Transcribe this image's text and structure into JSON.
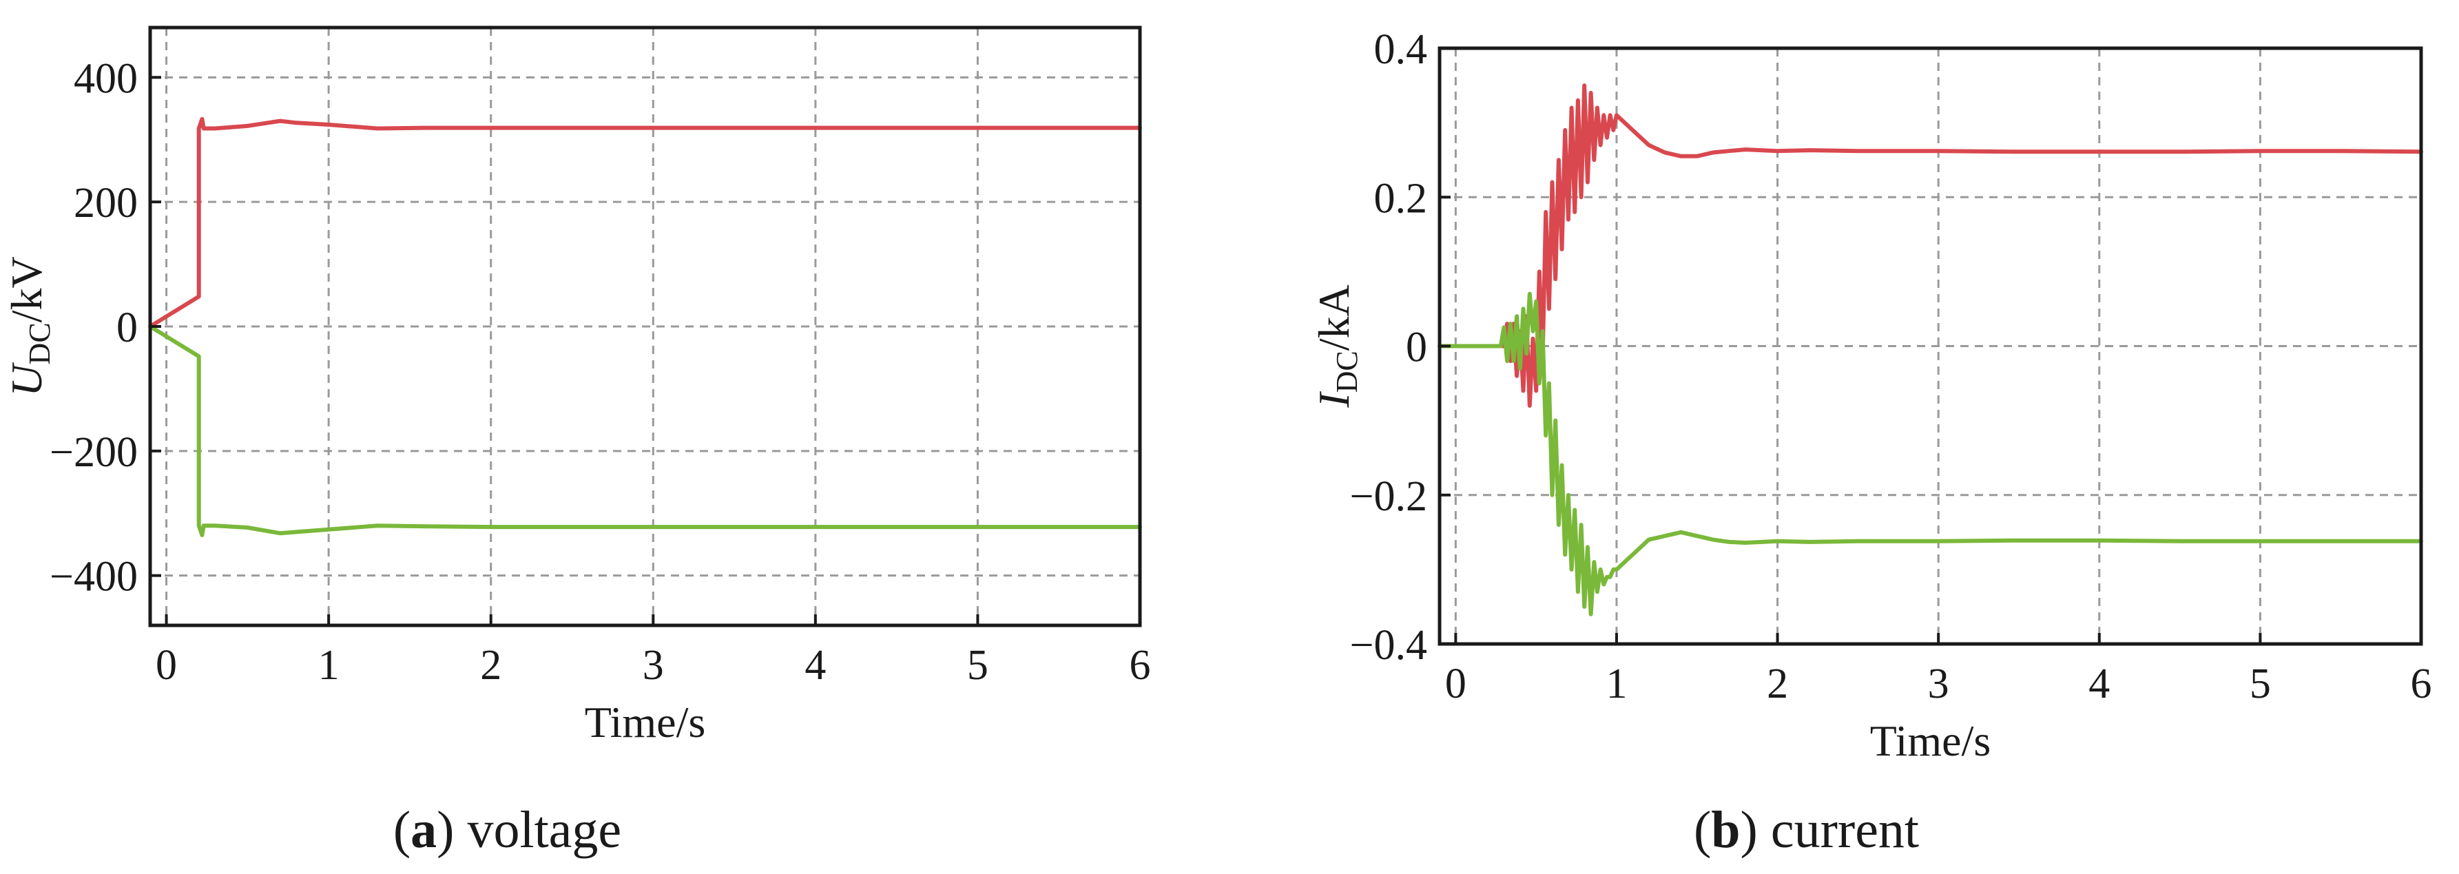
{
  "chart_data": [
    {
      "type": "line",
      "panel_letter": "a",
      "caption": "voltage",
      "xlabel": "Time/s",
      "ylabel_symbol": "U",
      "ylabel_subscript": "DC",
      "ylabel_unit": "/kV",
      "xlim": [
        -0.1,
        6
      ],
      "ylim": [
        -480,
        480
      ],
      "xticks": [
        0,
        1,
        2,
        3,
        4,
        5,
        6
      ],
      "xtick_labels": [
        "0",
        "1",
        "2",
        "3",
        "4",
        "5",
        "6"
      ],
      "yticks": [
        -400,
        -200,
        0,
        200,
        400
      ],
      "ytick_labels": [
        "−400",
        "−200",
        "0",
        "200",
        "400"
      ],
      "grid": true,
      "series": [
        {
          "color": "#d9484f",
          "x": [
            -0.1,
            0.2,
            0.2,
            0.22,
            0.23,
            0.3,
            0.5,
            0.7,
            0.8,
            1.0,
            1.3,
            1.6,
            2.0,
            3.0,
            4.0,
            5.0,
            6.0
          ],
          "y": [
            0,
            48,
            318,
            333,
            318,
            318,
            322,
            330,
            327,
            324,
            318,
            319,
            319,
            319,
            319,
            319,
            319
          ]
        },
        {
          "color": "#7ab83a",
          "x": [
            -0.1,
            0.2,
            0.2,
            0.22,
            0.23,
            0.3,
            0.5,
            0.7,
            0.8,
            1.0,
            1.3,
            1.6,
            2.0,
            3.0,
            4.0,
            5.0,
            6.0
          ],
          "y": [
            0,
            -48,
            -320,
            -335,
            -320,
            -320,
            -323,
            -332,
            -330,
            -326,
            -320,
            -321,
            -322,
            -322,
            -322,
            -322,
            -322
          ]
        }
      ]
    },
    {
      "type": "line",
      "panel_letter": "b",
      "caption": "current",
      "xlabel": "Time/s",
      "ylabel_symbol": "I",
      "ylabel_subscript": "DC",
      "ylabel_unit": "/kA",
      "xlim": [
        -0.1,
        6
      ],
      "ylim": [
        -0.4,
        0.4
      ],
      "xticks": [
        0,
        1,
        2,
        3,
        4,
        5,
        6
      ],
      "xtick_labels": [
        "0",
        "1",
        "2",
        "3",
        "4",
        "5",
        "6"
      ],
      "yticks": [
        -0.4,
        -0.2,
        0,
        0.2,
        0.4
      ],
      "ytick_labels": [
        "−0.4",
        "−0.2",
        "0",
        "0.2",
        "0.4"
      ],
      "grid": true,
      "series": [
        {
          "color": "#d9484f",
          "x": [
            -0.1,
            0.3,
            0.32,
            0.34,
            0.36,
            0.38,
            0.4,
            0.42,
            0.44,
            0.46,
            0.48,
            0.5,
            0.52,
            0.54,
            0.56,
            0.58,
            0.6,
            0.62,
            0.64,
            0.66,
            0.68,
            0.7,
            0.72,
            0.74,
            0.76,
            0.78,
            0.8,
            0.82,
            0.84,
            0.86,
            0.88,
            0.9,
            0.92,
            0.94,
            0.96,
            0.98,
            1.0,
            1.05,
            1.1,
            1.15,
            1.2,
            1.3,
            1.4,
            1.5,
            1.6,
            1.7,
            1.8,
            2.0,
            2.2,
            2.5,
            3.0,
            3.5,
            4.0,
            4.5,
            5.0,
            5.5,
            6.0
          ],
          "y": [
            0,
            0,
            0.03,
            -0.02,
            0.03,
            -0.04,
            0.02,
            -0.06,
            0.04,
            -0.08,
            0.01,
            -0.06,
            0.1,
            -0.02,
            0.18,
            0.05,
            0.22,
            0.09,
            0.25,
            0.13,
            0.29,
            0.17,
            0.32,
            0.18,
            0.33,
            0.2,
            0.35,
            0.22,
            0.34,
            0.25,
            0.32,
            0.27,
            0.31,
            0.28,
            0.31,
            0.29,
            0.31,
            0.3,
            0.29,
            0.28,
            0.27,
            0.26,
            0.255,
            0.255,
            0.26,
            0.262,
            0.264,
            0.262,
            0.263,
            0.262,
            0.262,
            0.261,
            0.261,
            0.261,
            0.262,
            0.262,
            0.261
          ]
        },
        {
          "color": "#7ab83a",
          "x": [
            -0.1,
            0.28,
            0.3,
            0.32,
            0.34,
            0.36,
            0.38,
            0.4,
            0.42,
            0.44,
            0.46,
            0.48,
            0.5,
            0.52,
            0.54,
            0.56,
            0.58,
            0.6,
            0.62,
            0.64,
            0.66,
            0.68,
            0.7,
            0.72,
            0.74,
            0.76,
            0.78,
            0.8,
            0.82,
            0.84,
            0.86,
            0.88,
            0.9,
            0.92,
            0.94,
            0.96,
            0.98,
            1.0,
            1.05,
            1.1,
            1.15,
            1.2,
            1.3,
            1.4,
            1.5,
            1.6,
            1.7,
            1.8,
            2.0,
            2.2,
            2.5,
            3.0,
            3.5,
            4.0,
            4.5,
            5.0,
            5.5,
            6.0
          ],
          "y": [
            0,
            0,
            0.025,
            -0.02,
            0.03,
            -0.02,
            0.04,
            -0.03,
            0.05,
            -0.01,
            0.07,
            0.02,
            0.06,
            -0.05,
            0.02,
            -0.12,
            -0.05,
            -0.2,
            -0.1,
            -0.24,
            -0.16,
            -0.28,
            -0.2,
            -0.3,
            -0.22,
            -0.33,
            -0.24,
            -0.35,
            -0.27,
            -0.36,
            -0.29,
            -0.33,
            -0.3,
            -0.32,
            -0.31,
            -0.31,
            -0.3,
            -0.3,
            -0.29,
            -0.28,
            -0.27,
            -0.26,
            -0.255,
            -0.25,
            -0.255,
            -0.26,
            -0.263,
            -0.264,
            -0.262,
            -0.263,
            -0.262,
            -0.262,
            -0.261,
            -0.261,
            -0.262,
            -0.262,
            -0.262,
            -0.262
          ]
        }
      ]
    }
  ]
}
